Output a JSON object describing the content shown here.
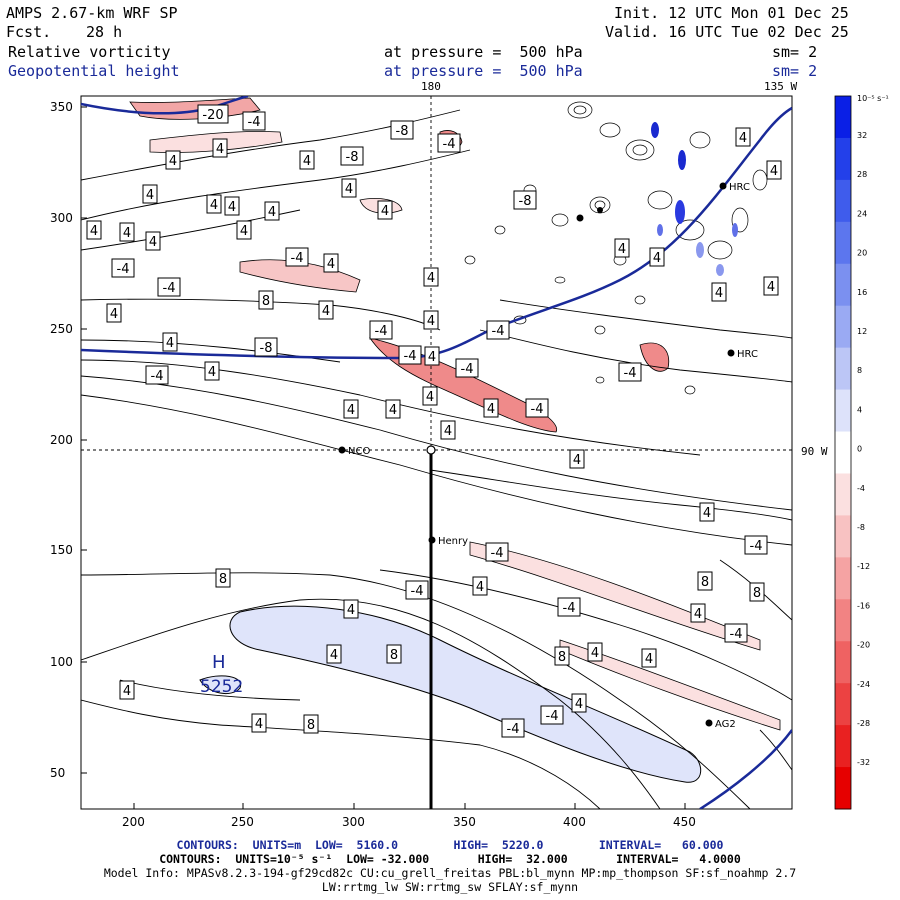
{
  "header": {
    "model": "AMPS 2.67-km WRF SP",
    "fcst_label": "Fcst.",
    "fcst_value": "28 h",
    "init": "Init. 12 UTC Mon 01 Dec 25",
    "valid": "Valid. 16 UTC Tue 02 Dec 25",
    "field1": "Relative vorticity",
    "field1_level": "at pressure =  500 hPa",
    "field1_sm": "sm= 2",
    "field2": "Geopotential height",
    "field2_level": "at pressure =  500 hPa",
    "field2_sm": "sm= 2"
  },
  "map": {
    "lon_labels": [
      "180",
      "135 W",
      "90 W"
    ],
    "x_ticks": [
      "200",
      "250",
      "300",
      "350",
      "400",
      "450"
    ],
    "y_ticks": [
      "350",
      "300",
      "250",
      "200",
      "150",
      "100",
      "50"
    ],
    "stations": [
      "HRC",
      "HRC",
      "NCO",
      "Henry",
      "AG2"
    ],
    "high_marker": "H",
    "high_value": "5252",
    "vort_contour_labels": [
      "-20",
      "-4",
      "-8",
      "-4",
      "4",
      "4",
      "4",
      "-8",
      "4",
      "4",
      "4",
      "4",
      "4",
      "4",
      "-8",
      "-4",
      "4",
      "4",
      "4",
      "4",
      "4",
      "-4",
      "-4",
      "4",
      "8",
      "4",
      "4",
      "4",
      "-4",
      "4",
      "4",
      "4",
      "4",
      "4",
      "4",
      "4",
      "4",
      "-4",
      "4",
      "-8",
      "-4",
      "4",
      "4",
      "4",
      "-4",
      "4",
      "-4",
      "4",
      "-4",
      "-4",
      "4",
      "4",
      "-4",
      "-4",
      "4",
      "-4",
      "-4",
      "8",
      "4",
      "8",
      "8",
      "4",
      "-4",
      "4",
      "4",
      "8",
      "4",
      "8",
      "4",
      "4",
      "8",
      "-4",
      "-4",
      "4"
    ]
  },
  "colorbar": {
    "units": "10⁻⁵ s⁻¹",
    "ticks": [
      "32",
      "28",
      "24",
      "20",
      "16",
      "12",
      "8",
      "4",
      "0",
      "-4",
      "-8",
      "-12",
      "-16",
      "-20",
      "-24",
      "-28",
      "-32"
    ],
    "colors": [
      "#0a1fe6",
      "#2340ea",
      "#3f5cec",
      "#5c76ee",
      "#7b90f0",
      "#9aaaf3",
      "#bcc6f6",
      "#dde2fa",
      "#ffffff",
      "#fbe0e0",
      "#f8c2c2",
      "#f5a3a3",
      "#f28383",
      "#ef6262",
      "#ec4242",
      "#e92121",
      "#e60000"
    ]
  },
  "footer": {
    "line1": "CONTOURS:  UNITS=m  LOW=  5160.0        HIGH=  5220.0        INTERVAL=   60.000",
    "line2": "CONTOURS:  UNITS=10⁻⁵ s⁻¹  LOW= -32.000       HIGH=  32.000       INTERVAL=   4.0000",
    "line3": "Model Info: MPASv8.2.3-194-gf29cd82c CU:cu_grell_freitas PBL:bl_mynn MP:mp_thompson SF:sf_noahmp 2.7",
    "line4": "LW:rrtmg_lw SW:rrtmg_sw SFLAY:sf_mynn"
  },
  "colors": {
    "height_contour": "#1a2a99",
    "positive_fill": "#dfe4fa",
    "negative_fill": "#f5b5b5"
  }
}
